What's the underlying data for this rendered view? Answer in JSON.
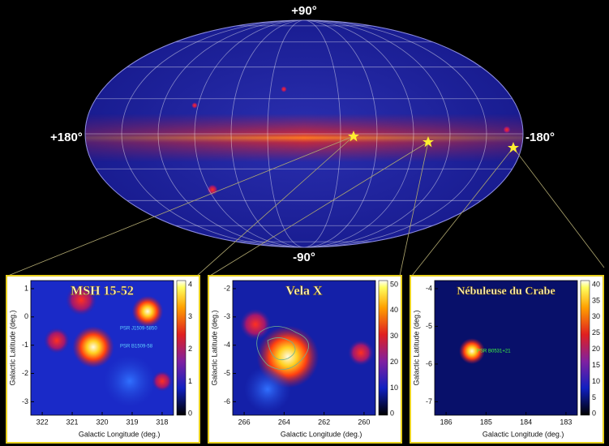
{
  "sky_map": {
    "labels": {
      "top": "+90°",
      "bottom": "-90°",
      "left": "+180°",
      "right": "-180°"
    }
  },
  "panels": [
    {
      "title": "MSH 15-52",
      "x_label": "Galactic Longitude (deg.)",
      "y_label": "Galactic Latitude (deg.)",
      "x_ticks": [
        322,
        321,
        320,
        319,
        318
      ],
      "y_ticks": [
        1,
        0,
        -1,
        -2,
        -3
      ],
      "colorbar_ticks": [
        4,
        3,
        2,
        1,
        0
      ],
      "sources": [
        "PSR J1509-5850",
        "PSR B1509-58"
      ]
    },
    {
      "title": "Vela X",
      "x_label": "Galactic Longitude (deg.)",
      "y_label": "Galactic Latitude (deg.)",
      "x_ticks": [
        266,
        264,
        262,
        260
      ],
      "y_ticks": [
        -2,
        -3,
        -4,
        -5,
        -6
      ],
      "colorbar_ticks": [
        50,
        40,
        30,
        20,
        10,
        0
      ]
    },
    {
      "title": "Nébuleuse du Crabe",
      "x_label": "Galactic Longitude (deg.)",
      "y_label": "Galactic Latitude (deg.)",
      "x_ticks": [
        186,
        185,
        184,
        183
      ],
      "y_ticks": [
        -4,
        -5,
        -6,
        -7
      ],
      "colorbar_ticks": [
        40,
        35,
        30,
        25,
        20,
        15,
        10,
        5,
        0
      ],
      "sources": [
        "PSR B0531+21"
      ]
    }
  ]
}
